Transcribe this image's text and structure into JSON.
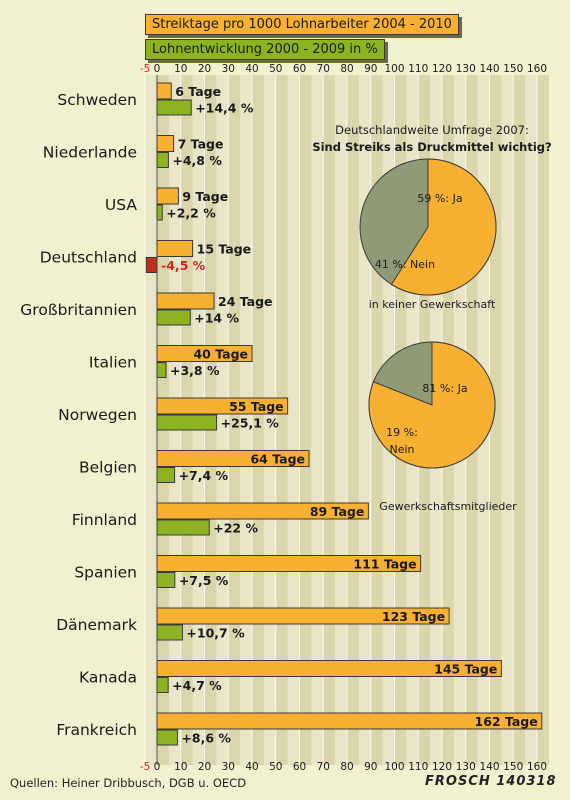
{
  "legend": {
    "strike_label": "Streiktage pro 1000 Lohnarbeiter 2004 - 2010",
    "wage_label": "Lohnentwicklung 2000 - 2009 in %"
  },
  "footer": {
    "source": "Quellen: Heiner Dribbusch, DGB u. OECD",
    "signature": "FROSCH 140318"
  },
  "colors": {
    "strike_bar": "#f7b032",
    "wage_bar_positive": "#8db321",
    "wage_bar_negative": "#c0301c",
    "negative_text": "#d0251b",
    "pie_yes": "#f7b032",
    "pie_no": "#8f9b77",
    "axis_text": "#1a1a1a",
    "axis_negative": "#d0251b"
  },
  "chart_data": [
    {
      "type": "bar",
      "orientation": "horizontal",
      "categories": [
        "Schweden",
        "Niederlande",
        "USA",
        "Deutschland",
        "Großbritannien",
        "Italien",
        "Norwegen",
        "Belgien",
        "Finnland",
        "Spanien",
        "Dänemark",
        "Kanada",
        "Frankreich"
      ],
      "series": [
        {
          "name": "Streiktage pro 1000 Lohnarbeiter 2004 - 2010",
          "values": [
            6,
            7,
            9,
            15,
            24,
            40,
            55,
            64,
            89,
            111,
            123,
            145,
            162
          ],
          "labels": [
            "6 Tage",
            "7 Tage",
            "9 Tage",
            "15 Tage",
            "24 Tage",
            "40 Tage",
            "55 Tage",
            "64 Tage",
            "89 Tage",
            "111 Tage",
            "123 Tage",
            "145 Tage",
            "162 Tage"
          ]
        },
        {
          "name": "Lohnentwicklung 2000 - 2009 in %",
          "values": [
            14.4,
            4.8,
            2.2,
            -4.5,
            14,
            3.8,
            25.1,
            7.4,
            22,
            7.5,
            10.7,
            4.7,
            8.6
          ],
          "labels": [
            "+14,4 %",
            "+4,8 %",
            "+2,2 %",
            "-4,5 %",
            "+14 %",
            "+3,8 %",
            "+25,1 %",
            "+7,4 %",
            "+22 %",
            "+7,5 %",
            "+10,7 %",
            "+4,7 %",
            "+8,6 %"
          ]
        }
      ],
      "xlim": [
        -5,
        163
      ],
      "xticks": [
        -5,
        0,
        10,
        20,
        30,
        40,
        50,
        60,
        70,
        80,
        90,
        100,
        110,
        120,
        130,
        140,
        150,
        160
      ],
      "grid": true
    },
    {
      "type": "pie",
      "title": "Deutschlandweite Umfrage 2007:",
      "subtitle": "Sind Streiks als Druckmittel wichtig?",
      "caption": "in keiner Gewerkschaft",
      "slices": [
        {
          "label": "59 %: Ja",
          "value": 59
        },
        {
          "label": "41 %: Nein",
          "value": 41
        }
      ]
    },
    {
      "type": "pie",
      "caption": "Gewerkschaftsmitglieder",
      "slices": [
        {
          "label": "81 %: Ja",
          "value": 81
        },
        {
          "label": "19 %: Nein",
          "value": 19
        }
      ]
    }
  ]
}
